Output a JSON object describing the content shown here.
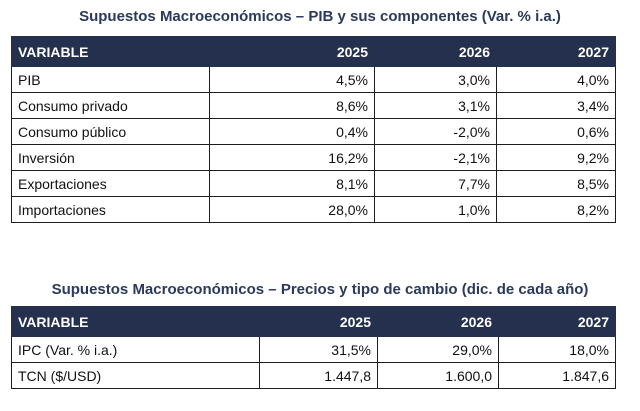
{
  "table1": {
    "title": "Supuestos Macroeconómicos – PIB y sus componentes (Var. % i.a.)",
    "headers": [
      "VARIABLE",
      "2025",
      "2026",
      "2027"
    ],
    "rows": [
      [
        "PIB",
        "4,5%",
        "3,0%",
        "4,0%"
      ],
      [
        "Consumo privado",
        "8,6%",
        "3,1%",
        "3,4%"
      ],
      [
        "Consumo público",
        "0,4%",
        "-2,0%",
        "0,6%"
      ],
      [
        "Inversión",
        "16,2%",
        "-2,1%",
        "9,2%"
      ],
      [
        "Exportaciones",
        "8,1%",
        "7,7%",
        "8,5%"
      ],
      [
        "Importaciones",
        "28,0%",
        "1,0%",
        "8,2%"
      ]
    ]
  },
  "table2": {
    "title": "Supuestos Macroeconómicos – Precios y tipo de cambio (dic. de cada año)",
    "headers": [
      "VARIABLE",
      "2025",
      "2026",
      "2027"
    ],
    "rows": [
      [
        "IPC (Var. % i.a.)",
        "31,5%",
        "29,0%",
        "18,0%"
      ],
      [
        "TCN ($/USD)",
        "1.447,8",
        "1.600,0",
        "1.847,6"
      ]
    ]
  },
  "colors": {
    "header_bg": "#25304f",
    "title": "#2b3a5c"
  }
}
